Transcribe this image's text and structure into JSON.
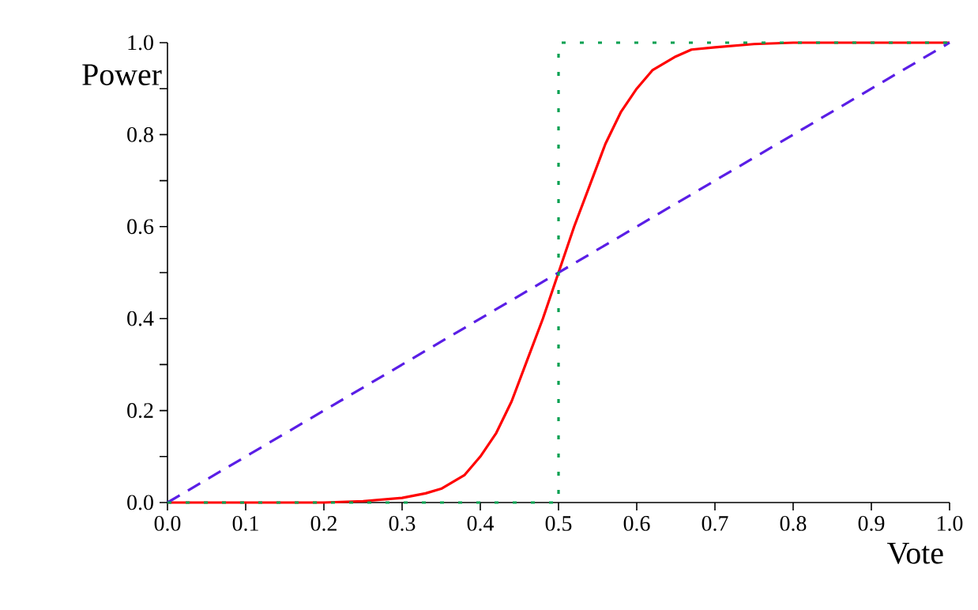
{
  "chart_data": {
    "type": "line",
    "xlabel": "Vote",
    "ylabel": "Power",
    "xlim": [
      0,
      1
    ],
    "ylim": [
      0,
      1
    ],
    "xticks": [
      {
        "value": 0,
        "label": "0.0"
      },
      0.1,
      0.2,
      0.3,
      0.4,
      0.5,
      0.6,
      0.7,
      0.8,
      0.9,
      {
        "value": 1,
        "label": "1.0"
      }
    ],
    "yticks": [
      {
        "value": 0,
        "label": "0.0"
      },
      {
        "value": 0.1,
        "label": null
      },
      0.2,
      {
        "value": 0.3,
        "label": null
      },
      0.4,
      {
        "value": 0.5,
        "label": null
      },
      0.6,
      {
        "value": 0.7,
        "label": null
      },
      0.8,
      {
        "value": 0.9,
        "label": null
      },
      {
        "value": 1,
        "label": "1.0"
      }
    ],
    "grid": false,
    "marker": "none",
    "series": [
      {
        "color": "#ff0000",
        "line_style": "solid",
        "x": [
          0,
          0.1,
          0.2,
          0.25,
          0.3,
          0.33,
          0.35,
          0.38,
          0.4,
          0.42,
          0.44,
          0.46,
          0.48,
          0.5,
          0.52,
          0.54,
          0.56,
          0.58,
          0.6,
          0.62,
          0.65,
          0.67,
          0.7,
          0.75,
          0.8,
          0.9,
          1
        ],
        "values": [
          0,
          0,
          0,
          0.003,
          0.01,
          0.02,
          0.03,
          0.06,
          0.1,
          0.15,
          0.22,
          0.31,
          0.4,
          0.5,
          0.6,
          0.69,
          0.78,
          0.85,
          0.9,
          0.94,
          0.97,
          0.985,
          0.99,
          0.997,
          1,
          1,
          1
        ]
      },
      {
        "color": "#5a1ee6",
        "line_style": "dashed",
        "x": [
          0,
          1
        ],
        "values": [
          0,
          1
        ]
      },
      {
        "color": "#00a050",
        "line_style": "dotted",
        "x": [
          0,
          0.5,
          0.5,
          1
        ],
        "values": [
          0,
          0,
          1,
          1
        ]
      }
    ]
  }
}
